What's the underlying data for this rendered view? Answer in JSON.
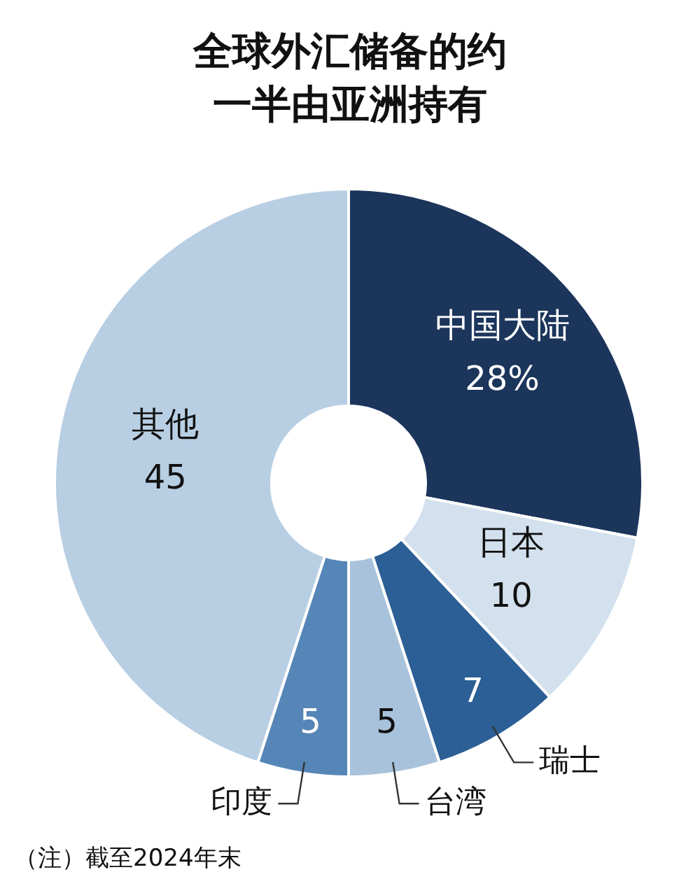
{
  "chart_data": {
    "type": "donut",
    "title": "全球外汇储备的约一半由亚洲持有",
    "categories": [
      "中国大陆",
      "日本",
      "瑞士",
      "台湾",
      "印度",
      "其他"
    ],
    "values": [
      28,
      10,
      7,
      5,
      5,
      45
    ],
    "colors": [
      "#1b355b",
      "#d3e0ed",
      "#2c5f95",
      "#a8c2db",
      "#5686b7",
      "#b8cee3"
    ],
    "value_labels": [
      "28%",
      "10",
      "7",
      "5",
      "5",
      "45"
    ],
    "annotations": [
      "（注）截至2024年末"
    ]
  }
}
